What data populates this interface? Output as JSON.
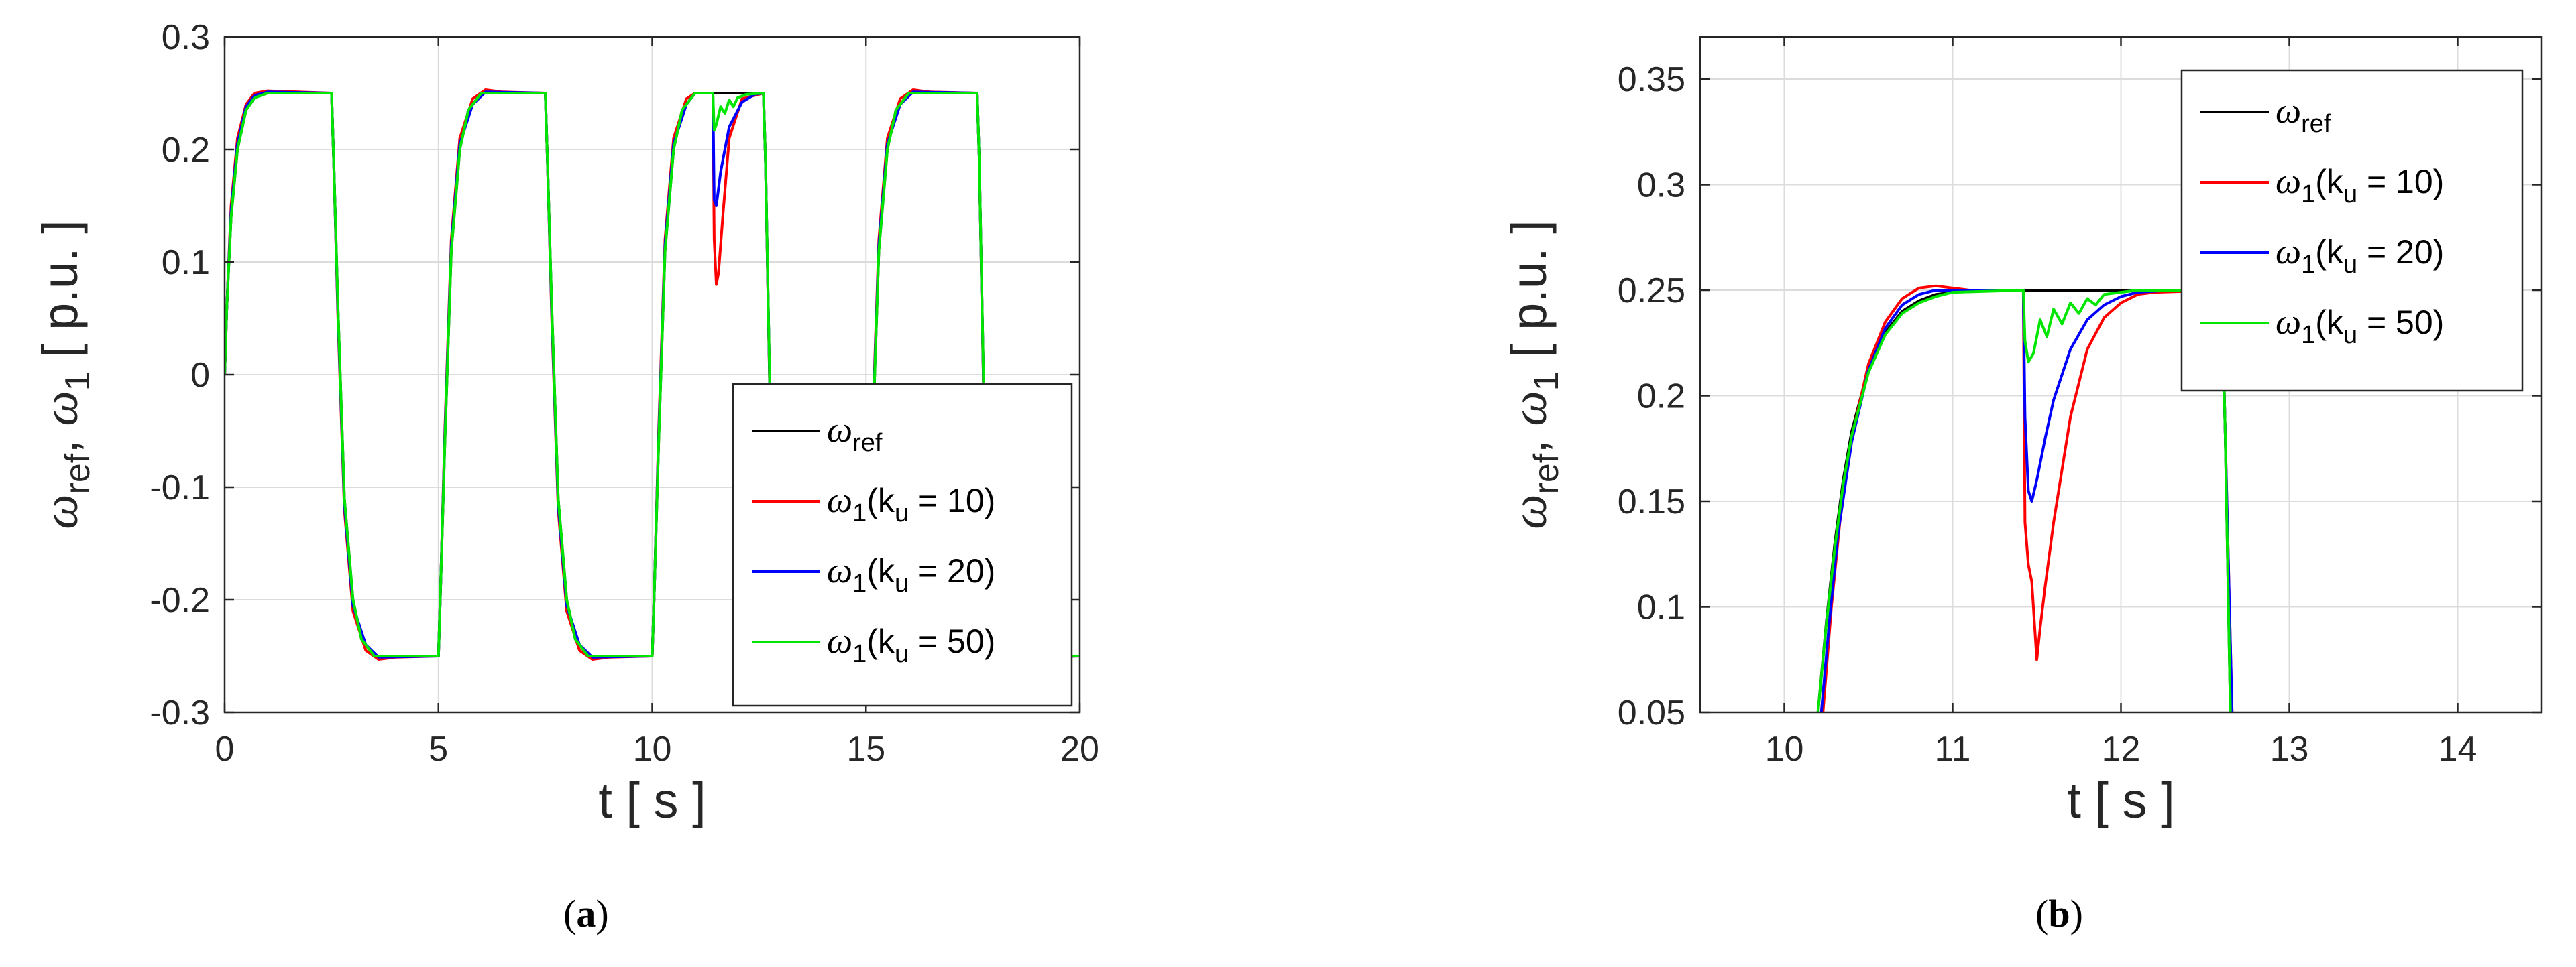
{
  "chart_data": [
    {
      "panel_label": "a",
      "type": "line",
      "xlabel": "t [ s ]",
      "ylabel": {
        "main": "ω",
        "sub1": "ref",
        "sep": ", ω",
        "sub2": "1",
        "unit": " [ p.u. ]"
      },
      "xlim": [
        0,
        20
      ],
      "ylim": [
        -0.3,
        0.3
      ],
      "xticks": [
        0,
        5,
        10,
        15,
        20
      ],
      "yticks": [
        -0.3,
        -0.2,
        -0.1,
        0,
        0.1,
        0.2,
        0.3
      ],
      "xtick_labels": [
        "0",
        "5",
        "10",
        "15",
        "20"
      ],
      "ytick_labels": [
        "-0.3",
        "-0.2",
        "-0.1",
        "0",
        "0.1",
        "0.2",
        "0.3"
      ],
      "grid": true,
      "legend_position": "bottom-right",
      "series": [
        {
          "name": "ω_ref",
          "legend": {
            "sym": "ω",
            "sub": "ref",
            "rest": ""
          },
          "color": "#000000",
          "x": [
            0,
            0.05,
            0.15,
            0.3,
            0.5,
            0.7,
            1.0,
            2.5,
            2.55,
            2.65,
            2.8,
            3.0,
            3.2,
            3.5,
            5.0,
            5.05,
            5.15,
            5.3,
            5.5,
            5.7,
            6.0,
            7.5,
            7.55,
            7.65,
            7.8,
            8.0,
            8.2,
            8.5,
            10.0,
            10.05,
            10.15,
            10.3,
            10.5,
            10.7,
            11.0,
            12.6,
            12.65,
            12.8,
            13.0,
            13.2,
            13.5,
            15.0,
            15.05,
            15.15,
            15.3,
            15.5,
            15.7,
            16.0,
            17.6,
            17.65,
            17.8,
            18.0,
            18.2,
            18.5,
            20.0
          ],
          "y": [
            0,
            0.06,
            0.14,
            0.2,
            0.235,
            0.246,
            0.25,
            0.25,
            0.19,
            0.06,
            -0.11,
            -0.2,
            -0.235,
            -0.25,
            -0.25,
            -0.19,
            -0.06,
            0.11,
            0.2,
            0.235,
            0.25,
            0.25,
            0.19,
            0.06,
            -0.11,
            -0.2,
            -0.235,
            -0.25,
            -0.25,
            -0.19,
            -0.06,
            0.11,
            0.2,
            0.235,
            0.25,
            0.25,
            0.19,
            -0.11,
            -0.2,
            -0.235,
            -0.25,
            -0.25,
            -0.19,
            -0.06,
            0.11,
            0.2,
            0.235,
            0.25,
            0.25,
            0.19,
            -0.11,
            -0.2,
            -0.235,
            -0.25,
            -0.25
          ]
        },
        {
          "name": "ω_1(k_u = 10)",
          "legend": {
            "sym": "ω",
            "sub": "1",
            "rest": "(k",
            "sub2": "u",
            "rest2": " = 10)"
          },
          "color": "#ff0000",
          "x": [
            0,
            0.05,
            0.15,
            0.3,
            0.5,
            0.7,
            1.0,
            2.5,
            2.55,
            2.65,
            2.8,
            3.0,
            3.3,
            3.6,
            4.0,
            5.0,
            5.05,
            5.15,
            5.3,
            5.5,
            5.8,
            6.1,
            6.5,
            7.5,
            7.55,
            7.65,
            7.8,
            8.0,
            8.3,
            8.6,
            9.0,
            10.0,
            10.05,
            10.15,
            10.3,
            10.5,
            10.8,
            11.0,
            11.42,
            11.45,
            11.5,
            11.55,
            11.65,
            11.8,
            12.1,
            12.6,
            12.65,
            12.8,
            13.0,
            13.3,
            13.6,
            14.0,
            15.0,
            15.05,
            15.15,
            15.3,
            15.5,
            15.8,
            16.1,
            16.5,
            17.6,
            17.65,
            17.8,
            18.0,
            18.3,
            18.6,
            19.0,
            20.0
          ],
          "y": [
            0,
            0.06,
            0.15,
            0.21,
            0.24,
            0.25,
            0.252,
            0.25,
            0.19,
            0.05,
            -0.12,
            -0.21,
            -0.245,
            -0.253,
            -0.251,
            -0.25,
            -0.19,
            -0.05,
            0.12,
            0.21,
            0.245,
            0.253,
            0.251,
            0.25,
            0.19,
            0.05,
            -0.12,
            -0.21,
            -0.245,
            -0.253,
            -0.251,
            -0.25,
            -0.19,
            -0.05,
            0.12,
            0.21,
            0.245,
            0.25,
            0.25,
            0.12,
            0.08,
            0.09,
            0.14,
            0.21,
            0.245,
            0.25,
            0.19,
            -0.12,
            -0.21,
            -0.245,
            -0.253,
            -0.251,
            -0.25,
            -0.19,
            -0.05,
            0.12,
            0.21,
            0.245,
            0.253,
            0.251,
            0.25,
            0.19,
            -0.12,
            -0.21,
            -0.245,
            -0.253,
            -0.251,
            -0.25
          ]
        },
        {
          "name": "ω_1(k_u = 20)",
          "legend": {
            "sym": "ω",
            "sub": "1",
            "rest": "(k",
            "sub2": "u",
            "rest2": " = 20)"
          },
          "color": "#0000ff",
          "x": [
            0,
            0.05,
            0.15,
            0.3,
            0.5,
            0.7,
            1.0,
            2.5,
            2.55,
            2.65,
            2.8,
            3.0,
            3.3,
            3.6,
            5.0,
            5.05,
            5.15,
            5.3,
            5.5,
            5.8,
            6.1,
            7.5,
            7.55,
            7.65,
            7.8,
            8.0,
            8.3,
            8.6,
            10.0,
            10.05,
            10.15,
            10.3,
            10.5,
            10.8,
            11.0,
            11.42,
            11.45,
            11.5,
            11.6,
            11.8,
            12.1,
            12.4,
            12.6,
            12.65,
            12.8,
            13.0,
            13.3,
            13.6,
            15.0,
            15.05,
            15.15,
            15.3,
            15.5,
            15.8,
            16.1,
            17.6,
            17.65,
            17.8,
            18.0,
            18.3,
            18.6,
            20.0
          ],
          "y": [
            0,
            0.06,
            0.145,
            0.205,
            0.238,
            0.248,
            0.251,
            0.25,
            0.19,
            0.055,
            -0.115,
            -0.205,
            -0.24,
            -0.251,
            -0.25,
            -0.19,
            -0.055,
            0.115,
            0.205,
            0.24,
            0.251,
            0.25,
            0.19,
            0.055,
            -0.115,
            -0.205,
            -0.24,
            -0.251,
            -0.25,
            -0.19,
            -0.055,
            0.115,
            0.205,
            0.24,
            0.25,
            0.25,
            0.155,
            0.15,
            0.18,
            0.22,
            0.242,
            0.249,
            0.25,
            0.19,
            -0.115,
            -0.205,
            -0.24,
            -0.251,
            -0.25,
            -0.19,
            -0.055,
            0.115,
            0.205,
            0.24,
            0.251,
            0.25,
            0.19,
            -0.115,
            -0.205,
            -0.24,
            -0.251,
            -0.25
          ]
        },
        {
          "name": "ω_1(k_u = 50)",
          "legend": {
            "sym": "ω",
            "sub": "1",
            "rest": "(k",
            "sub2": "u",
            "rest2": " = 50)"
          },
          "color": "#00e600",
          "x": [
            0,
            0.05,
            0.15,
            0.3,
            0.5,
            0.7,
            1.0,
            2.5,
            2.55,
            2.65,
            2.8,
            3.0,
            3.2,
            3.5,
            5.0,
            5.05,
            5.15,
            5.3,
            5.5,
            5.7,
            6.0,
            7.5,
            7.55,
            7.65,
            7.8,
            8.0,
            8.2,
            8.5,
            10.0,
            10.05,
            10.15,
            10.3,
            10.5,
            10.7,
            11.0,
            11.42,
            11.45,
            11.5,
            11.6,
            11.7,
            11.8,
            11.9,
            12.0,
            12.2,
            12.6,
            12.65,
            12.8,
            13.0,
            13.2,
            13.5,
            15.0,
            15.05,
            15.15,
            15.3,
            15.5,
            15.7,
            16.0,
            17.6,
            17.65,
            17.8,
            18.0,
            18.2,
            18.5,
            20.0
          ],
          "y": [
            0,
            0.06,
            0.14,
            0.2,
            0.235,
            0.246,
            0.25,
            0.25,
            0.19,
            0.06,
            -0.11,
            -0.2,
            -0.235,
            -0.25,
            -0.25,
            -0.19,
            -0.06,
            0.11,
            0.2,
            0.235,
            0.25,
            0.25,
            0.19,
            0.06,
            -0.11,
            -0.2,
            -0.235,
            -0.25,
            -0.25,
            -0.19,
            -0.06,
            0.11,
            0.2,
            0.235,
            0.25,
            0.25,
            0.217,
            0.222,
            0.238,
            0.232,
            0.244,
            0.238,
            0.246,
            0.249,
            0.25,
            0.19,
            -0.11,
            -0.2,
            -0.235,
            -0.25,
            -0.25,
            -0.19,
            -0.06,
            0.11,
            0.2,
            0.235,
            0.25,
            0.25,
            0.19,
            -0.11,
            -0.2,
            -0.235,
            -0.25,
            -0.25
          ]
        }
      ]
    },
    {
      "panel_label": "b",
      "type": "line",
      "xlabel": "t [ s ]",
      "ylabel": {
        "main": "ω",
        "sub1": "ref",
        "sep": ", ω",
        "sub2": "1",
        "unit": " [ p.u. ]"
      },
      "xlim": [
        9.5,
        14.5
      ],
      "ylim": [
        0.05,
        0.37
      ],
      "xticks": [
        10,
        11,
        12,
        13,
        14
      ],
      "yticks": [
        0.05,
        0.1,
        0.15,
        0.2,
        0.25,
        0.3,
        0.35
      ],
      "xtick_labels": [
        "10",
        "11",
        "12",
        "13",
        "14"
      ],
      "ytick_labels": [
        "0.05",
        "0.1",
        "0.15",
        "0.2",
        "0.25",
        "0.3",
        "0.35"
      ],
      "grid": true,
      "legend_position": "top-right",
      "series": [
        {
          "name": "ω_ref",
          "legend": {
            "sym": "ω",
            "sub": "ref",
            "rest": ""
          },
          "color": "#000000",
          "x": [
            10.2,
            10.25,
            10.3,
            10.35,
            10.4,
            10.5,
            10.6,
            10.7,
            10.8,
            10.9,
            11.0,
            11.2,
            12.6,
            12.62,
            12.65
          ],
          "y": [
            0.05,
            0.093,
            0.13,
            0.16,
            0.183,
            0.213,
            0.23,
            0.24,
            0.245,
            0.248,
            0.249,
            0.25,
            0.25,
            0.18,
            0.05
          ]
        },
        {
          "name": "ω_1(k_u = 10)",
          "legend": {
            "sym": "ω",
            "sub": "1",
            "rest": "(k",
            "sub2": "u",
            "rest2": " = 10)"
          },
          "color": "#ff0000",
          "x": [
            10.23,
            10.28,
            10.33,
            10.4,
            10.5,
            10.6,
            10.7,
            10.8,
            10.9,
            11.0,
            11.1,
            11.42,
            11.43,
            11.45,
            11.47,
            11.5,
            11.52,
            11.55,
            11.6,
            11.7,
            11.8,
            11.9,
            12.0,
            12.1,
            12.2,
            12.6,
            12.62,
            12.66
          ],
          "y": [
            0.05,
            0.1,
            0.14,
            0.18,
            0.215,
            0.235,
            0.246,
            0.251,
            0.252,
            0.251,
            0.25,
            0.25,
            0.14,
            0.12,
            0.112,
            0.075,
            0.09,
            0.11,
            0.14,
            0.19,
            0.222,
            0.237,
            0.244,
            0.248,
            0.249,
            0.25,
            0.18,
            0.05
          ]
        },
        {
          "name": "ω_1(k_u = 20)",
          "legend": {
            "sym": "ω",
            "sub": "1",
            "rest": "(k",
            "sub2": "u",
            "rest2": " = 20)"
          },
          "color": "#0000ff",
          "x": [
            10.22,
            10.27,
            10.32,
            10.4,
            10.5,
            10.6,
            10.7,
            10.8,
            10.9,
            11.0,
            11.42,
            11.43,
            11.45,
            11.47,
            11.5,
            11.55,
            11.6,
            11.7,
            11.8,
            11.9,
            12.0,
            12.1,
            12.3,
            12.6,
            12.62,
            12.66
          ],
          "y": [
            0.05,
            0.095,
            0.135,
            0.178,
            0.212,
            0.232,
            0.243,
            0.248,
            0.25,
            0.25,
            0.25,
            0.19,
            0.155,
            0.15,
            0.16,
            0.18,
            0.198,
            0.222,
            0.236,
            0.243,
            0.247,
            0.249,
            0.25,
            0.25,
            0.18,
            0.05
          ]
        },
        {
          "name": "ω_1(k_u = 50)",
          "legend": {
            "sym": "ω",
            "sub": "1",
            "rest": "(k",
            "sub2": "u",
            "rest2": " = 50)"
          },
          "color": "#00e600",
          "x": [
            10.2,
            10.25,
            10.3,
            10.35,
            10.4,
            10.5,
            10.6,
            10.7,
            10.8,
            10.9,
            11.0,
            11.42,
            11.43,
            11.45,
            11.48,
            11.52,
            11.56,
            11.6,
            11.65,
            11.7,
            11.75,
            11.8,
            11.85,
            11.9,
            12.0,
            12.1,
            12.6,
            12.62,
            12.65
          ],
          "y": [
            0.05,
            0.092,
            0.128,
            0.158,
            0.181,
            0.211,
            0.229,
            0.239,
            0.244,
            0.247,
            0.249,
            0.25,
            0.226,
            0.216,
            0.22,
            0.236,
            0.228,
            0.241,
            0.234,
            0.244,
            0.239,
            0.246,
            0.243,
            0.248,
            0.249,
            0.25,
            0.25,
            0.18,
            0.05
          ]
        }
      ]
    }
  ]
}
